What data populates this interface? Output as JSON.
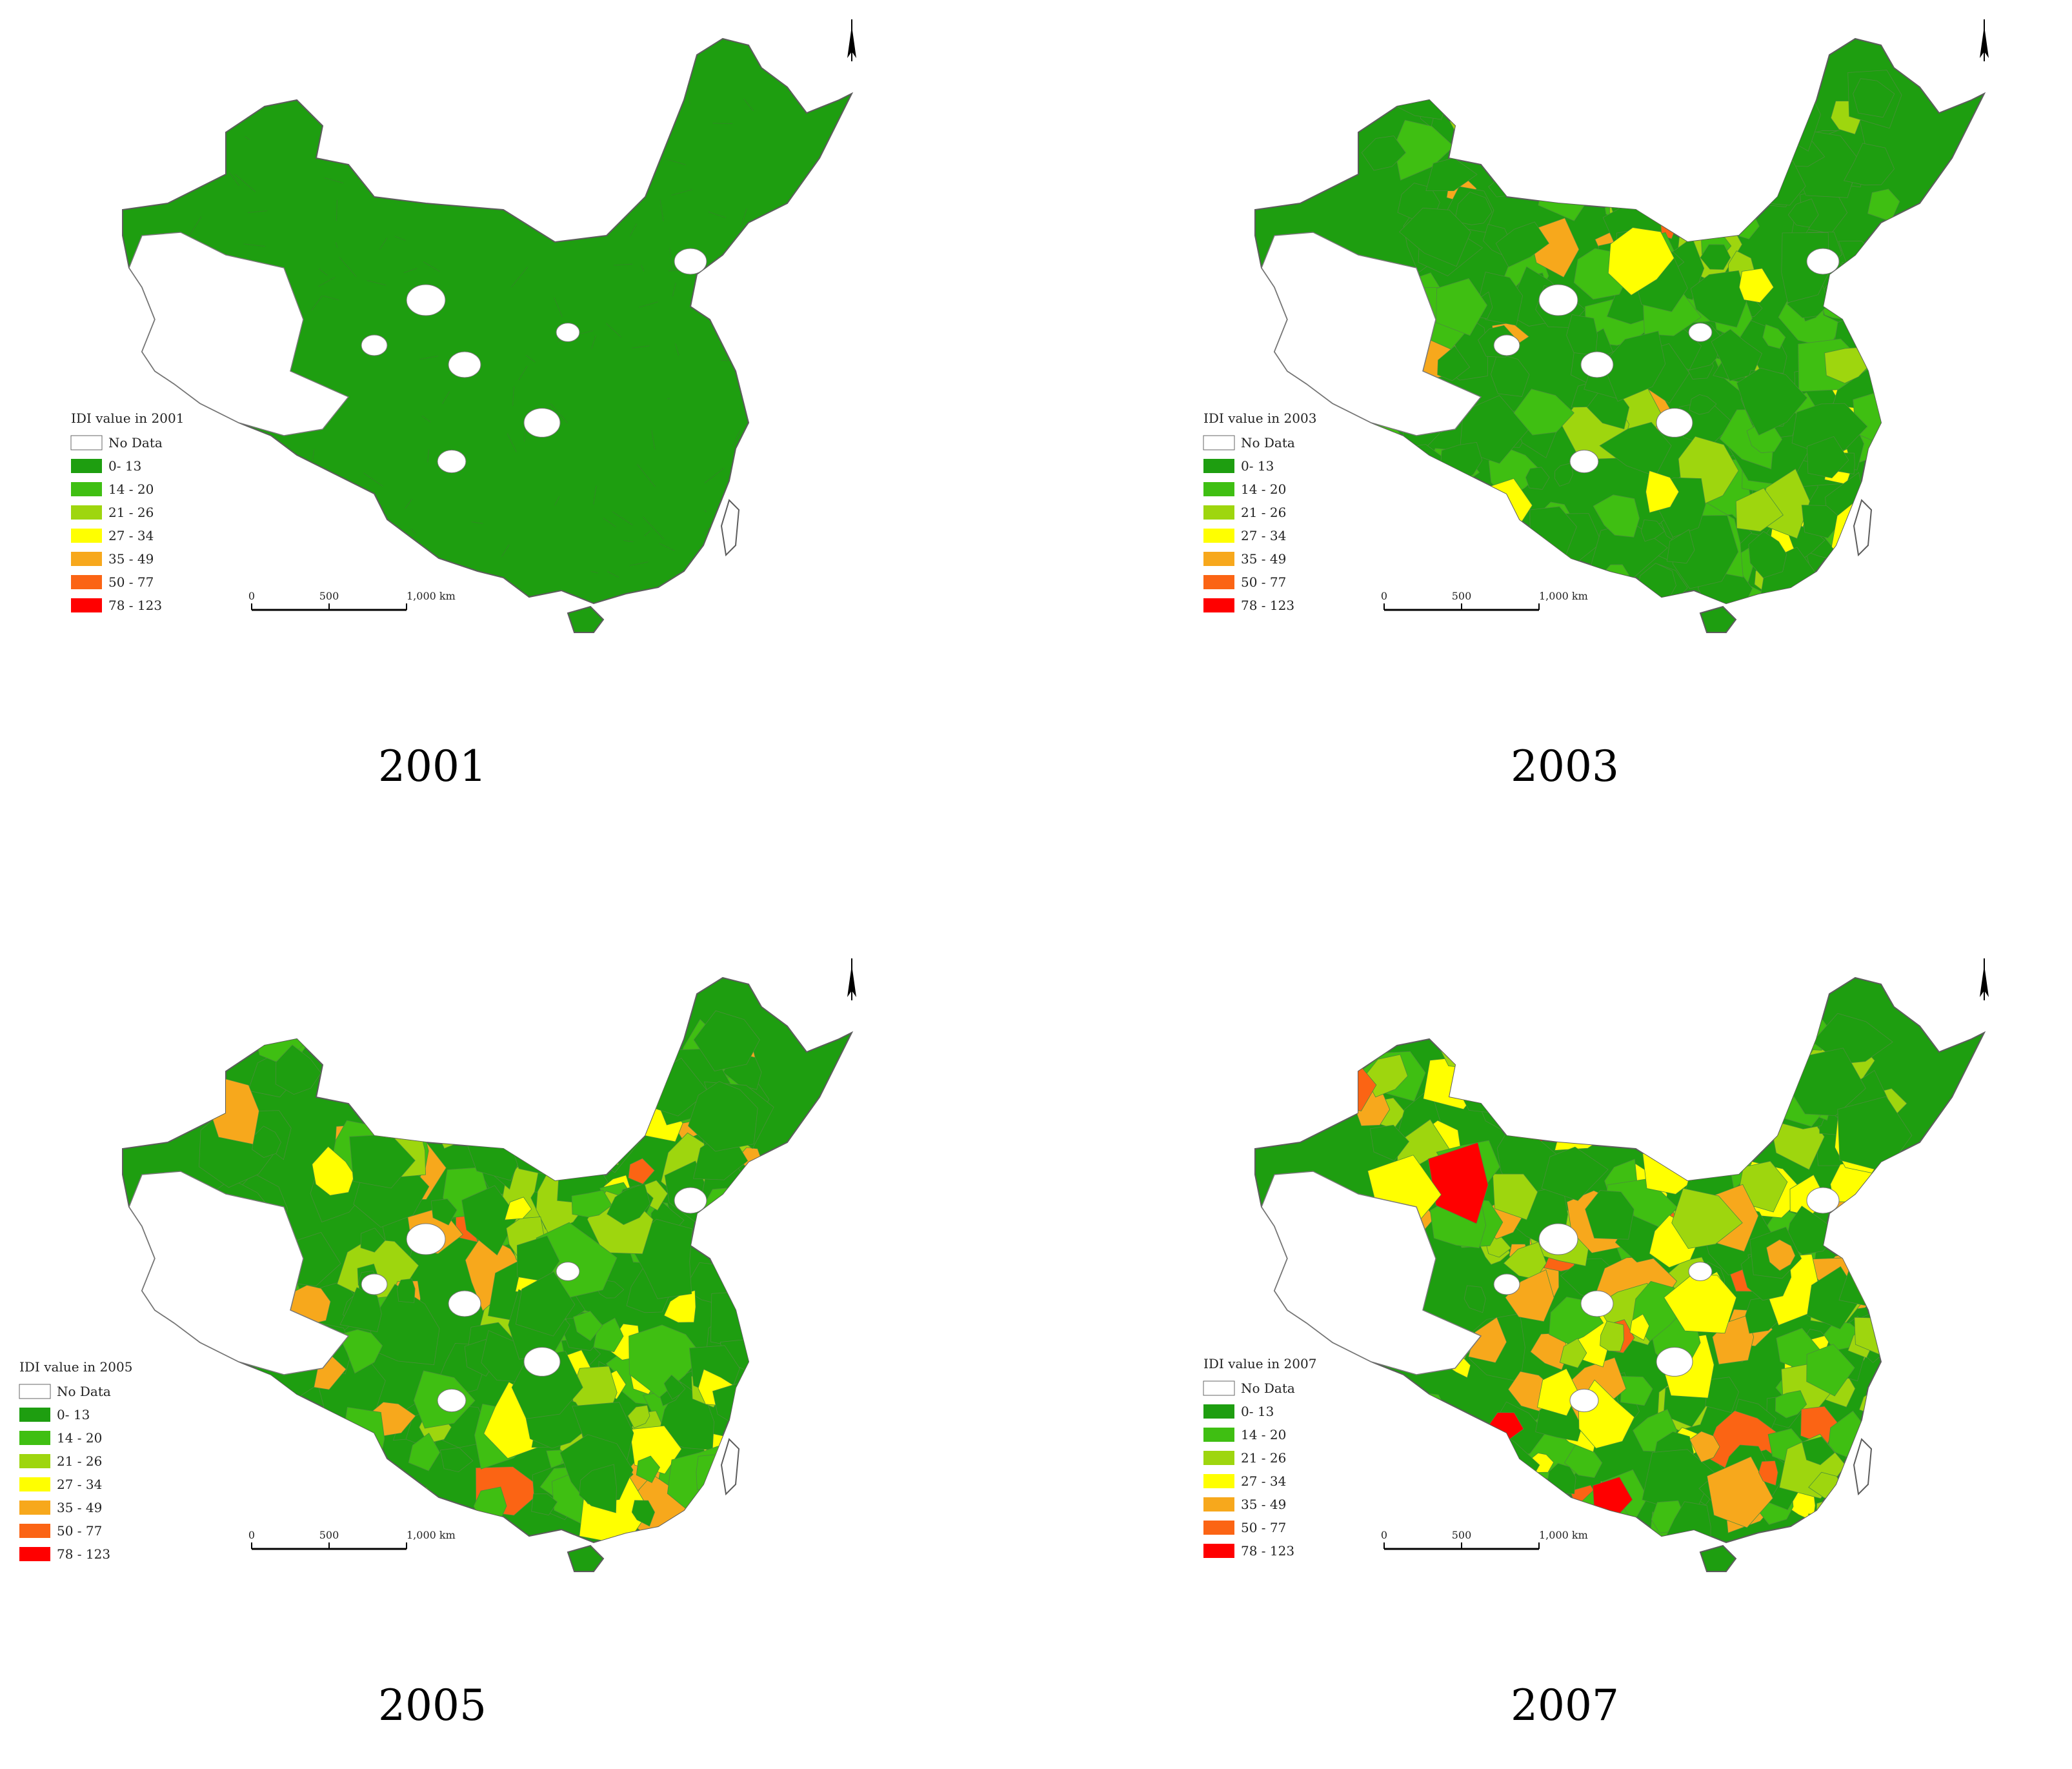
{
  "figure": {
    "panels": [
      {
        "year_label": "2001",
        "legend_title": "IDI value in 2001",
        "scale_labels": [
          "0",
          "500",
          "1,000 km"
        ],
        "intensity": 0
      },
      {
        "year_label": "2003",
        "legend_title": "IDI value in 2003",
        "scale_labels": [
          "0",
          "500",
          "1,000 km"
        ],
        "intensity": 1
      },
      {
        "year_label": "2005",
        "legend_title": "IDI value in 2005",
        "scale_labels": [
          "0",
          "500",
          "1,000 km"
        ],
        "intensity": 2
      },
      {
        "year_label": "2007",
        "legend_title": "IDI value in 2007",
        "scale_labels": [
          "0",
          "500",
          "1,000 km"
        ],
        "intensity": 3
      }
    ],
    "legend_classes": [
      {
        "label": "No Data",
        "color": "#ffffff"
      },
      {
        "label": "0- 13",
        "color": "#1e9e10"
      },
      {
        "label": "14 - 20",
        "color": "#3fbf12"
      },
      {
        "label": "21 - 26",
        "color": "#9ed60e"
      },
      {
        "label": "27 - 34",
        "color": "#ffff00"
      },
      {
        "label": "35 - 49",
        "color": "#f7a81c"
      },
      {
        "label": "50 - 77",
        "color": "#fb6414"
      },
      {
        "label": "78 - 123",
        "color": "#ff0000"
      }
    ],
    "icons": {
      "north_arrow": "north-arrow-icon"
    }
  }
}
